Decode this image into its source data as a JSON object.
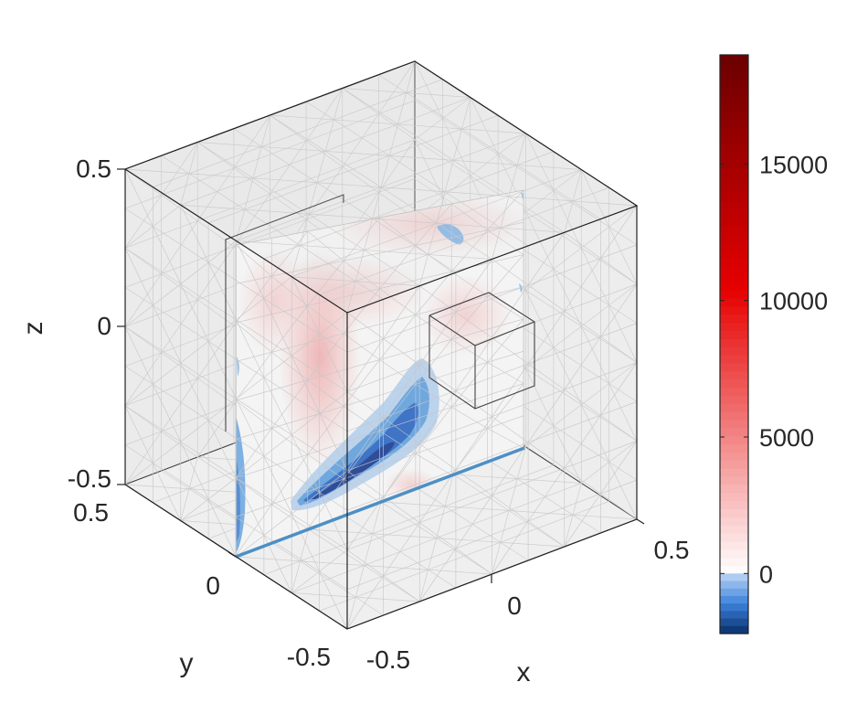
{
  "chart_data": {
    "type": "heatmap",
    "subtype": "3d-slice-contour",
    "title": "",
    "axes": {
      "x": {
        "label": "x",
        "range": [
          -0.5,
          0.5
        ],
        "ticks": [
          "-0.5",
          "0",
          "0.5"
        ]
      },
      "y": {
        "label": "y",
        "range": [
          -0.5,
          0.5
        ],
        "ticks": [
          "-0.5",
          "0",
          "0.5"
        ]
      },
      "z": {
        "label": "z",
        "range": [
          -0.5,
          0.5
        ],
        "ticks": [
          "-0.5",
          "0",
          "0.5"
        ]
      }
    },
    "slice": {
      "plane": "y",
      "value": 0
    },
    "colorbar": {
      "range": [
        -2200,
        19000
      ],
      "ticks": [
        {
          "value": 0,
          "label": "0"
        },
        {
          "value": 5000,
          "label": "5000"
        },
        {
          "value": 10000,
          "label": "10000"
        },
        {
          "value": 15000,
          "label": "15000"
        }
      ],
      "colors": {
        "negative_min": "#08306b",
        "zero": "#ffffff",
        "positive_max": "#6b0000"
      }
    },
    "regions": [
      {
        "name": "pink column",
        "x": -0.12,
        "z": -0.05,
        "value": 3500
      },
      {
        "name": "pink top band",
        "x": 0.05,
        "z": 0.3,
        "value": 1500
      },
      {
        "name": "pink right",
        "x": 0.25,
        "z": 0.05,
        "value": 1200
      },
      {
        "name": "blue plume core",
        "x": 0.05,
        "z": -0.38,
        "value": -2200
      },
      {
        "name": "blue plume outer",
        "x": 0.1,
        "z": -0.3,
        "value": -800
      },
      {
        "name": "blue left edge",
        "x": -0.48,
        "z": -0.35,
        "value": -700
      },
      {
        "name": "blue top patch",
        "x": 0.3,
        "z": 0.4,
        "value": -500
      }
    ],
    "boxes": [
      {
        "name": "inner cube",
        "center": [
          0.35,
          0,
          0.05
        ],
        "size": 0.15
      }
    ],
    "grid": true,
    "legend": "colorbar-right"
  }
}
